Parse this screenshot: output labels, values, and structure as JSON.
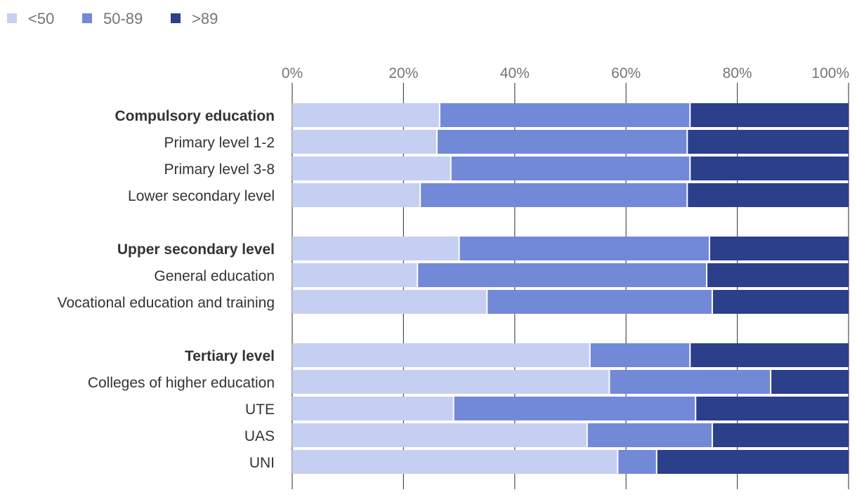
{
  "chart_data": {
    "type": "bar",
    "orientation": "horizontal",
    "stacked": true,
    "title": "",
    "xlabel": "",
    "ylabel": "",
    "xlim": [
      0,
      100
    ],
    "x_ticks": [
      "0%",
      "20%",
      "40%",
      "60%",
      "80%",
      "100%"
    ],
    "legend_position": "top-left",
    "grid": true,
    "legend": [
      {
        "name": "<50",
        "color": "#c5cff2"
      },
      {
        "name": "50-89",
        "color": "#7289d8"
      },
      {
        "name": ">89",
        "color": "#2b3f8a"
      }
    ],
    "groups": [
      {
        "rows": [
          {
            "label": "Compulsory education",
            "bold": true,
            "values": [
              26.5,
              45,
              28.5
            ]
          },
          {
            "label": "Primary level 1-2",
            "bold": false,
            "values": [
              26,
              45,
              29
            ]
          },
          {
            "label": "Primary level 3-8",
            "bold": false,
            "values": [
              28.5,
              43,
              28.5
            ]
          },
          {
            "label": "Lower secondary level",
            "bold": false,
            "values": [
              23,
              48,
              29
            ]
          }
        ]
      },
      {
        "rows": [
          {
            "label": "Upper secondary level",
            "bold": true,
            "values": [
              30,
              45,
              25
            ]
          },
          {
            "label": "General education",
            "bold": false,
            "values": [
              22.5,
              52,
              25.5
            ]
          },
          {
            "label": "Vocational education and training",
            "bold": false,
            "values": [
              35,
              40.5,
              24.5
            ]
          }
        ]
      },
      {
        "rows": [
          {
            "label": "Tertiary level",
            "bold": true,
            "values": [
              53.5,
              18,
              28.5
            ]
          },
          {
            "label": "Colleges of higher education",
            "bold": false,
            "values": [
              57,
              29,
              14
            ]
          },
          {
            "label": "UTE",
            "bold": false,
            "values": [
              29,
              43.5,
              27.5
            ]
          },
          {
            "label": "UAS",
            "bold": false,
            "values": [
              53,
              22.5,
              24.5
            ]
          },
          {
            "label": "UNI",
            "bold": false,
            "values": [
              58.5,
              7,
              34.5
            ]
          }
        ]
      }
    ]
  }
}
